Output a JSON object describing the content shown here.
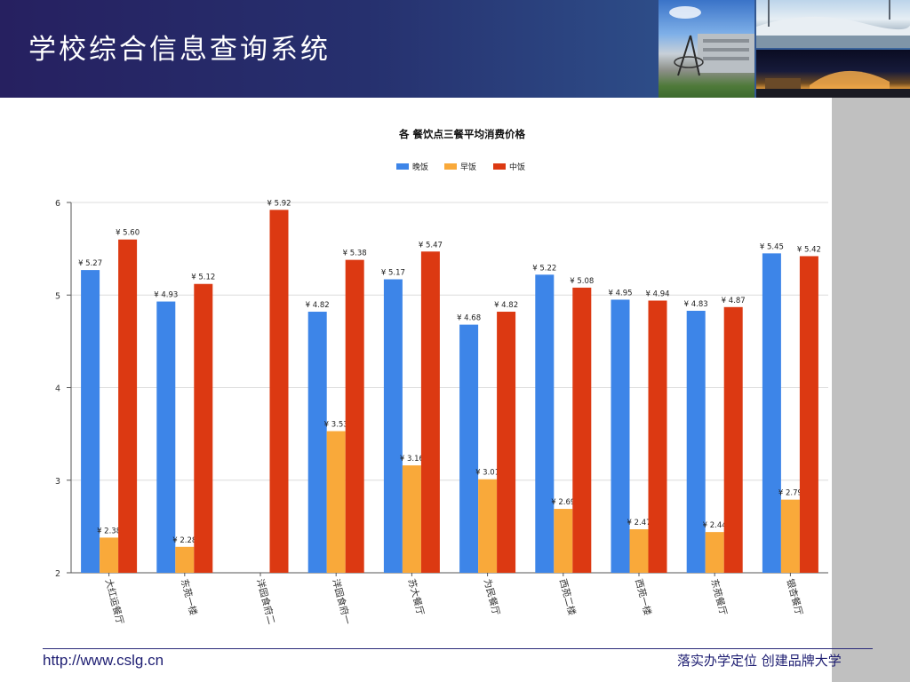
{
  "header": {
    "title": "学校综合信息查询系统"
  },
  "footer": {
    "url": "http://www.cslg.cn",
    "slogan": "落实办学定位 创建品牌大学"
  },
  "colors": {
    "header_bg": "#262060",
    "series_dinner": "#3d85e8",
    "series_breakfast": "#f9a93a",
    "series_lunch": "#dc3912",
    "sidebar": "#c0c0c0"
  },
  "chart_data": {
    "type": "bar",
    "title": "各 餐饮点三餐平均消费价格",
    "legend_position": "top",
    "categories": [
      "大红运餐厅",
      "东苑一楼",
      "洋园食府二",
      "洋园食府一",
      "苏大餐厅",
      "为民餐厅",
      "西苑二楼",
      "西苑一楼",
      "东苑餐厅",
      "银杏餐厅"
    ],
    "series": [
      {
        "name": "晚饭",
        "values": [
          5.27,
          4.93,
          null,
          4.82,
          5.17,
          4.68,
          5.22,
          4.95,
          4.83,
          5.45
        ]
      },
      {
        "name": "早饭",
        "values": [
          2.38,
          2.28,
          null,
          3.53,
          3.16,
          3.01,
          2.69,
          2.47,
          2.44,
          2.79
        ]
      },
      {
        "name": "中饭",
        "values": [
          5.6,
          5.12,
          5.92,
          5.38,
          5.47,
          4.82,
          5.08,
          4.94,
          4.87,
          5.42
        ]
      }
    ],
    "ylim": [
      2,
      6
    ],
    "yticks": [
      2,
      3,
      4,
      5,
      6
    ],
    "value_label_prefix": "¥ ",
    "grid": true
  }
}
